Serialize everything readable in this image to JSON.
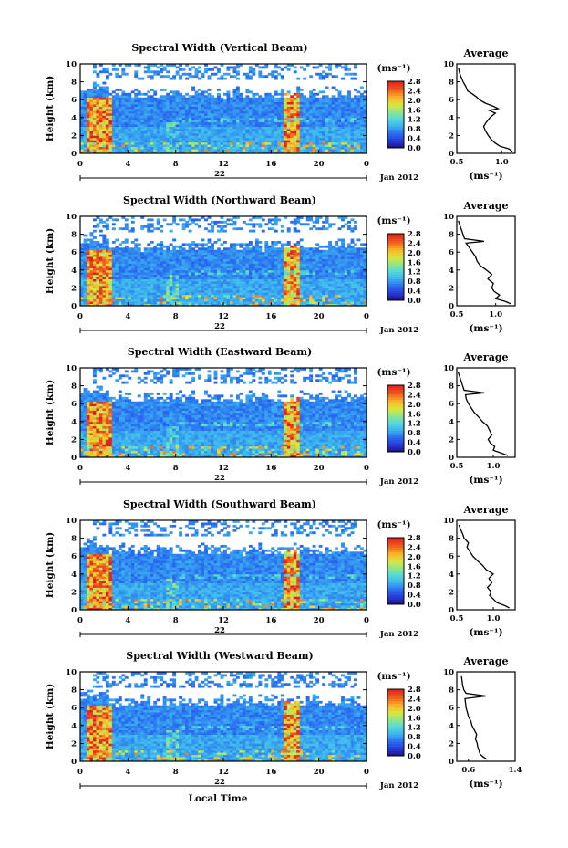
{
  "figure": {
    "x_title": "Local Time",
    "date_label": "Jan 2012",
    "colorbar_unit": "(ms⁻¹)",
    "average_title": "Average",
    "average_unit": "(ms⁻¹)"
  },
  "chart_data": [
    {
      "type": "heatmap",
      "title": "Spectral Width (Vertical Beam)",
      "xlabel": "",
      "ylabel": "Height (km)",
      "x_ticks": [
        "0",
        "4",
        "8",
        "12",
        "16",
        "20",
        "0"
      ],
      "day_label": "22",
      "ylim": [
        0,
        10
      ],
      "y_ticks": [
        "0",
        "2",
        "4",
        "6",
        "8",
        "10"
      ],
      "colorbar": {
        "min": 0.0,
        "max": 2.8,
        "ticks": [
          "0.0",
          "0.4",
          "0.8",
          "1.2",
          "1.6",
          "2.0",
          "2.4",
          "2.8"
        ]
      },
      "average": {
        "xlim": [
          0.5,
          1.15
        ],
        "x_ticks": [
          "0.5",
          "1.0"
        ],
        "profile": [
          [
            1.12,
            0.2
          ],
          [
            1.08,
            0.5
          ],
          [
            0.98,
            0.8
          ],
          [
            0.92,
            1.2
          ],
          [
            0.88,
            1.6
          ],
          [
            0.85,
            2.0
          ],
          [
            0.82,
            2.5
          ],
          [
            0.8,
            3.0
          ],
          [
            0.83,
            3.5
          ],
          [
            0.87,
            4.0
          ],
          [
            0.93,
            4.5
          ],
          [
            0.86,
            4.8
          ],
          [
            0.96,
            5.0
          ],
          [
            0.9,
            5.3
          ],
          [
            0.82,
            5.6
          ],
          [
            0.75,
            6.0
          ],
          [
            0.72,
            6.3
          ],
          [
            0.68,
            6.6
          ],
          [
            0.62,
            7.0
          ],
          [
            0.6,
            7.5
          ],
          [
            0.57,
            8.0
          ],
          [
            0.55,
            8.5
          ],
          [
            0.53,
            9.0
          ],
          [
            0.52,
            9.5
          ]
        ]
      }
    },
    {
      "type": "heatmap",
      "title": "Spectral Width (Northward Beam)",
      "xlabel": "",
      "ylabel": "Height (km)",
      "x_ticks": [
        "0",
        "4",
        "8",
        "12",
        "16",
        "20",
        "0"
      ],
      "day_label": "22",
      "ylim": [
        0,
        10
      ],
      "y_ticks": [
        "0",
        "2",
        "4",
        "6",
        "8",
        "10"
      ],
      "colorbar": {
        "min": 0.0,
        "max": 2.8,
        "ticks": [
          "0.0",
          "0.4",
          "0.8",
          "1.2",
          "1.6",
          "2.0",
          "2.4",
          "2.8"
        ]
      },
      "average": {
        "xlim": [
          0.5,
          1.25
        ],
        "x_ticks": [
          "0.5",
          "1.0"
        ],
        "profile": [
          [
            1.2,
            0.2
          ],
          [
            1.12,
            0.5
          ],
          [
            1.0,
            0.8
          ],
          [
            1.05,
            1.2
          ],
          [
            0.98,
            1.6
          ],
          [
            0.95,
            2.0
          ],
          [
            0.97,
            2.5
          ],
          [
            0.9,
            3.0
          ],
          [
            0.95,
            3.5
          ],
          [
            0.88,
            4.0
          ],
          [
            0.8,
            4.5
          ],
          [
            0.76,
            5.0
          ],
          [
            0.74,
            5.5
          ],
          [
            0.7,
            6.0
          ],
          [
            0.66,
            6.5
          ],
          [
            0.62,
            7.0
          ],
          [
            0.85,
            7.2
          ],
          [
            0.6,
            7.5
          ],
          [
            0.58,
            8.0
          ],
          [
            0.56,
            8.5
          ],
          [
            0.54,
            9.0
          ],
          [
            0.52,
            9.5
          ]
        ]
      }
    },
    {
      "type": "heatmap",
      "title": "Spectral Width (Eastward Beam)",
      "xlabel": "",
      "ylabel": "Height (km)",
      "x_ticks": [
        "0",
        "4",
        "8",
        "12",
        "16",
        "20",
        "0"
      ],
      "day_label": "22",
      "ylim": [
        0,
        10
      ],
      "y_ticks": [
        "0",
        "2",
        "4",
        "6",
        "8",
        "10"
      ],
      "colorbar": {
        "min": 0.0,
        "max": 2.8,
        "ticks": [
          "0.0",
          "0.4",
          "0.8",
          "1.2",
          "1.6",
          "2.0",
          "2.4",
          "2.8"
        ]
      },
      "average": {
        "xlim": [
          0.5,
          1.3
        ],
        "x_ticks": [
          "0.5",
          "1.0"
        ],
        "profile": [
          [
            1.2,
            0.2
          ],
          [
            1.1,
            0.5
          ],
          [
            1.0,
            0.8
          ],
          [
            1.02,
            1.2
          ],
          [
            0.96,
            1.6
          ],
          [
            0.93,
            2.0
          ],
          [
            0.98,
            2.5
          ],
          [
            0.95,
            3.0
          ],
          [
            0.92,
            3.5
          ],
          [
            0.85,
            4.0
          ],
          [
            0.8,
            4.5
          ],
          [
            0.74,
            5.0
          ],
          [
            0.7,
            5.5
          ],
          [
            0.66,
            6.0
          ],
          [
            0.63,
            6.5
          ],
          [
            0.62,
            7.0
          ],
          [
            0.88,
            7.2
          ],
          [
            0.6,
            7.5
          ],
          [
            0.58,
            8.0
          ],
          [
            0.56,
            8.5
          ],
          [
            0.54,
            9.0
          ],
          [
            0.52,
            9.5
          ]
        ]
      }
    },
    {
      "type": "heatmap",
      "title": "Spectral Width (Southward Beam)",
      "xlabel": "",
      "ylabel": "Height (km)",
      "x_ticks": [
        "0",
        "4",
        "8",
        "12",
        "16",
        "20",
        "0"
      ],
      "day_label": "22",
      "ylim": [
        0,
        10
      ],
      "y_ticks": [
        "0",
        "2",
        "4",
        "6",
        "8",
        "10"
      ],
      "colorbar": {
        "min": 0.0,
        "max": 2.8,
        "ticks": [
          "0.0",
          "0.4",
          "0.8",
          "1.2",
          "1.6",
          "2.0",
          "2.4",
          "2.8"
        ]
      },
      "average": {
        "xlim": [
          0.5,
          1.3
        ],
        "x_ticks": [
          "0.5",
          "1.0"
        ],
        "profile": [
          [
            1.22,
            0.2
          ],
          [
            1.15,
            0.5
          ],
          [
            1.05,
            0.8
          ],
          [
            1.0,
            1.2
          ],
          [
            0.95,
            1.6
          ],
          [
            0.97,
            2.0
          ],
          [
            0.92,
            2.5
          ],
          [
            0.98,
            3.0
          ],
          [
            0.94,
            3.5
          ],
          [
            1.0,
            4.0
          ],
          [
            0.9,
            4.5
          ],
          [
            0.85,
            5.0
          ],
          [
            0.78,
            5.5
          ],
          [
            0.72,
            6.0
          ],
          [
            0.68,
            6.5
          ],
          [
            0.64,
            7.0
          ],
          [
            0.66,
            7.5
          ],
          [
            0.6,
            8.0
          ],
          [
            0.58,
            8.5
          ],
          [
            0.55,
            9.0
          ],
          [
            0.53,
            9.5
          ]
        ]
      }
    },
    {
      "type": "heatmap",
      "title": "Spectral Width (Westward Beam)",
      "xlabel": "Local Time",
      "ylabel": "Height (km)",
      "x_ticks": [
        "0",
        "4",
        "8",
        "12",
        "16",
        "20",
        "0"
      ],
      "day_label": "22",
      "ylim": [
        0,
        10
      ],
      "y_ticks": [
        "0",
        "2",
        "4",
        "6",
        "8",
        "10"
      ],
      "colorbar": {
        "min": 0.0,
        "max": 2.8,
        "ticks": [
          "0.0",
          "0.4",
          "0.8",
          "1.2",
          "1.6",
          "2.0",
          "2.4",
          "2.8"
        ]
      },
      "average": {
        "xlim": [
          0.4,
          1.4
        ],
        "x_ticks": [
          "0.6",
          "1.4"
        ],
        "profile": [
          [
            0.92,
            0.2
          ],
          [
            0.85,
            0.5
          ],
          [
            0.8,
            0.8
          ],
          [
            0.78,
            1.2
          ],
          [
            0.76,
            1.6
          ],
          [
            0.75,
            2.0
          ],
          [
            0.72,
            2.5
          ],
          [
            0.74,
            3.0
          ],
          [
            0.7,
            3.5
          ],
          [
            0.66,
            4.0
          ],
          [
            0.64,
            4.5
          ],
          [
            0.6,
            5.0
          ],
          [
            0.58,
            5.5
          ],
          [
            0.56,
            6.0
          ],
          [
            0.55,
            6.5
          ],
          [
            0.54,
            7.0
          ],
          [
            0.9,
            7.3
          ],
          [
            0.56,
            7.6
          ],
          [
            0.52,
            8.0
          ],
          [
            0.5,
            8.5
          ],
          [
            0.49,
            9.0
          ],
          [
            0.48,
            9.5
          ]
        ]
      }
    }
  ]
}
